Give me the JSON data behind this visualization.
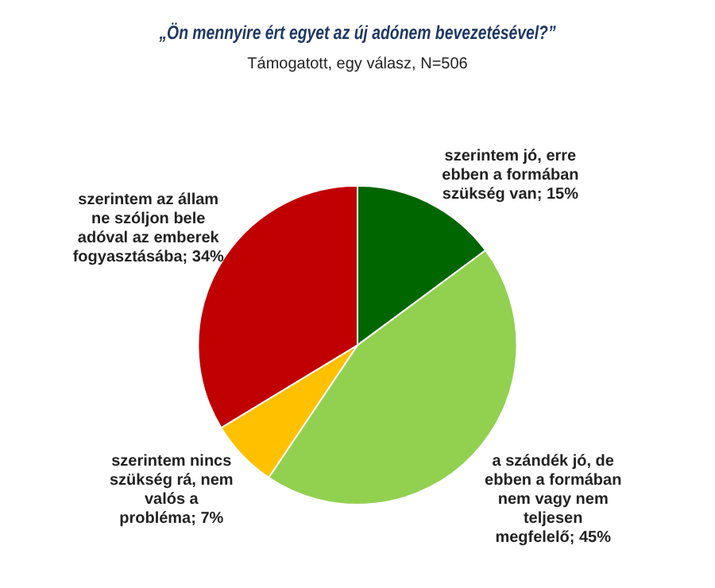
{
  "chart_data": {
    "type": "pie",
    "title": "„Ön mennyire ért egyet az új adónem bevezetésével?”",
    "subtitle": "Támogatott, egy válasz, N=506",
    "categories": [
      "szerintem jó, erre ebben a formában szükség van",
      "a szándék jó, de ebben a formában nem vagy nem teljesen megfelelő",
      "szerintem nincs szükség rá, nem valós a probléma",
      "szerintem az állam ne szóljon bele adóval az emberek fogyasztásába"
    ],
    "values": [
      15,
      45,
      7,
      34
    ],
    "value_labels": [
      "15%",
      "45%",
      "7%",
      "34%"
    ],
    "colors": [
      "#006600",
      "#92d050",
      "#ffc000",
      "#c00000"
    ],
    "legend": false
  }
}
